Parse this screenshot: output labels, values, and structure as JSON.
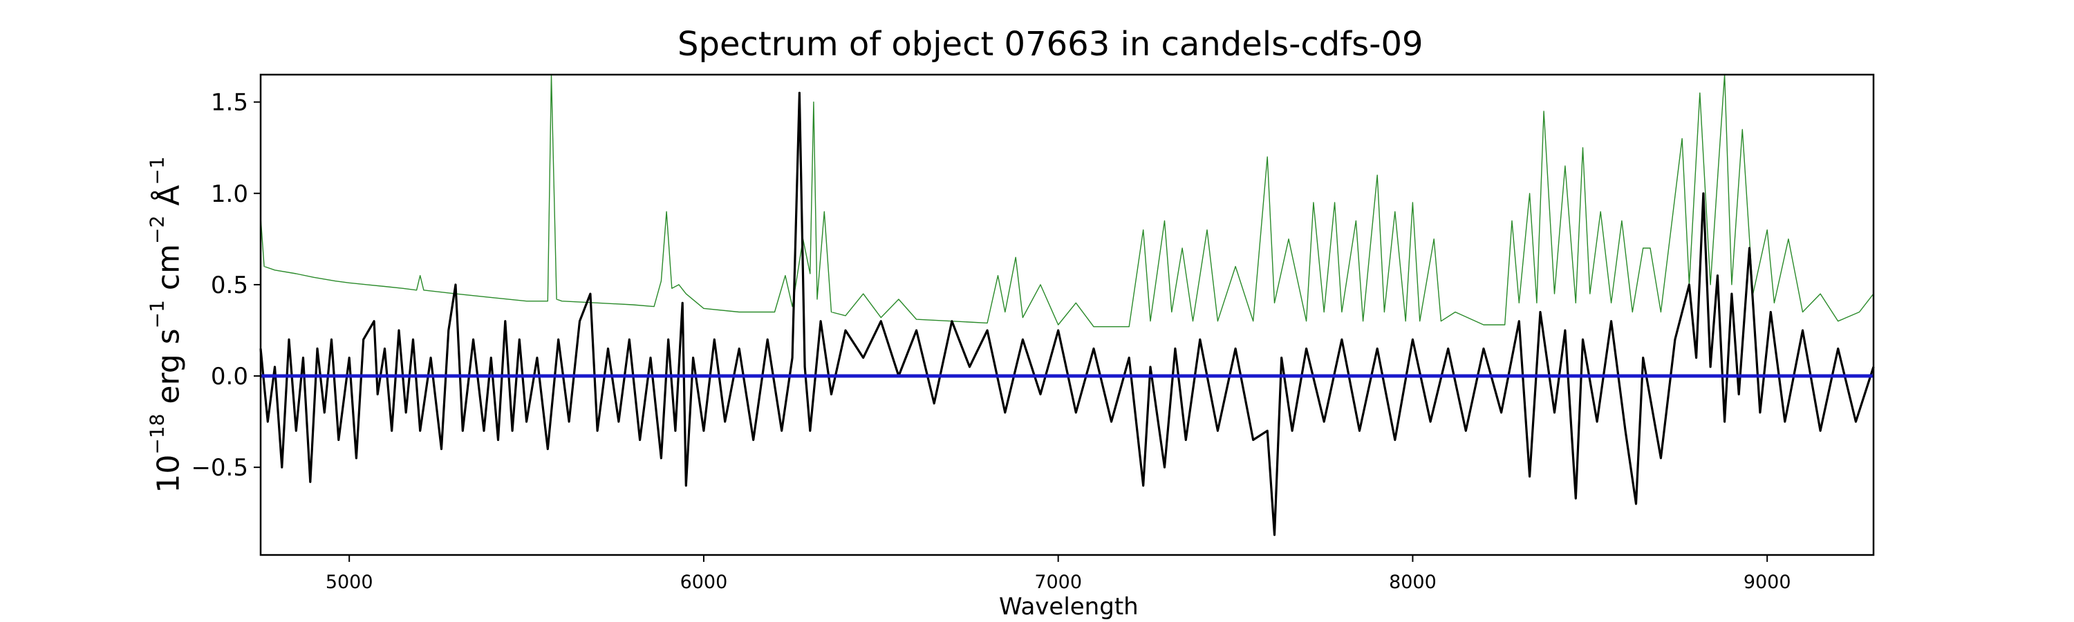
{
  "chart_data": {
    "type": "line",
    "title": "Spectrum of object 07663 in candels-cdfs-09",
    "xlabel": "Wavelength",
    "ylabel": {
      "prefix": "10",
      "prefix_exp": "−18",
      "unit1": " erg s",
      "unit1_exp": "−1",
      "unit2": " cm",
      "unit2_exp": "−2",
      "unit3": " Å",
      "unit3_exp": "−1"
    },
    "xlim": [
      4750,
      9300
    ],
    "ylim": [
      -0.98,
      1.65
    ],
    "xticks": [
      5000,
      6000,
      7000,
      8000,
      9000
    ],
    "xtick_labels": [
      "5000",
      "6000",
      "7000",
      "8000",
      "9000"
    ],
    "yticks": [
      -0.5,
      0.0,
      0.5,
      1.0,
      1.5
    ],
    "ytick_labels": [
      "−0.5",
      "0.0",
      "0.5",
      "1.0",
      "1.5"
    ],
    "grid": false,
    "series": [
      {
        "color": "#2a8a2a",
        "role": "error",
        "width": 1.4,
        "points": [
          [
            4750,
            0.87
          ],
          [
            4760,
            0.6
          ],
          [
            4790,
            0.58
          ],
          [
            4850,
            0.56
          ],
          [
            4900,
            0.54
          ],
          [
            4960,
            0.52
          ],
          [
            5000,
            0.51
          ],
          [
            5050,
            0.5
          ],
          [
            5100,
            0.49
          ],
          [
            5150,
            0.48
          ],
          [
            5190,
            0.47
          ],
          [
            5200,
            0.55
          ],
          [
            5210,
            0.47
          ],
          [
            5300,
            0.45
          ],
          [
            5400,
            0.43
          ],
          [
            5500,
            0.41
          ],
          [
            5560,
            0.41
          ],
          [
            5570,
            1.65
          ],
          [
            5585,
            0.42
          ],
          [
            5600,
            0.41
          ],
          [
            5700,
            0.4
          ],
          [
            5800,
            0.39
          ],
          [
            5860,
            0.38
          ],
          [
            5880,
            0.52
          ],
          [
            5895,
            0.9
          ],
          [
            5910,
            0.48
          ],
          [
            5930,
            0.5
          ],
          [
            5950,
            0.45
          ],
          [
            6000,
            0.37
          ],
          [
            6100,
            0.35
          ],
          [
            6200,
            0.35
          ],
          [
            6230,
            0.55
          ],
          [
            6250,
            0.38
          ],
          [
            6280,
            0.75
          ],
          [
            6300,
            0.56
          ],
          [
            6310,
            1.5
          ],
          [
            6320,
            0.42
          ],
          [
            6340,
            0.9
          ],
          [
            6360,
            0.35
          ],
          [
            6400,
            0.33
          ],
          [
            6450,
            0.45
          ],
          [
            6500,
            0.32
          ],
          [
            6550,
            0.42
          ],
          [
            6600,
            0.31
          ],
          [
            6700,
            0.3
          ],
          [
            6800,
            0.29
          ],
          [
            6830,
            0.55
          ],
          [
            6850,
            0.35
          ],
          [
            6880,
            0.65
          ],
          [
            6900,
            0.32
          ],
          [
            6950,
            0.5
          ],
          [
            7000,
            0.28
          ],
          [
            7050,
            0.4
          ],
          [
            7100,
            0.27
          ],
          [
            7200,
            0.27
          ],
          [
            7240,
            0.8
          ],
          [
            7260,
            0.3
          ],
          [
            7300,
            0.85
          ],
          [
            7320,
            0.35
          ],
          [
            7350,
            0.7
          ],
          [
            7380,
            0.3
          ],
          [
            7420,
            0.8
          ],
          [
            7450,
            0.3
          ],
          [
            7500,
            0.6
          ],
          [
            7550,
            0.3
          ],
          [
            7590,
            1.2
          ],
          [
            7610,
            0.4
          ],
          [
            7650,
            0.75
          ],
          [
            7700,
            0.3
          ],
          [
            7720,
            0.95
          ],
          [
            7750,
            0.35
          ],
          [
            7780,
            0.95
          ],
          [
            7800,
            0.35
          ],
          [
            7840,
            0.85
          ],
          [
            7860,
            0.3
          ],
          [
            7900,
            1.1
          ],
          [
            7920,
            0.35
          ],
          [
            7950,
            0.9
          ],
          [
            7980,
            0.3
          ],
          [
            8000,
            0.95
          ],
          [
            8020,
            0.3
          ],
          [
            8060,
            0.75
          ],
          [
            8080,
            0.3
          ],
          [
            8120,
            0.35
          ],
          [
            8200,
            0.28
          ],
          [
            8260,
            0.28
          ],
          [
            8280,
            0.85
          ],
          [
            8300,
            0.4
          ],
          [
            8330,
            1.0
          ],
          [
            8350,
            0.4
          ],
          [
            8370,
            1.45
          ],
          [
            8400,
            0.45
          ],
          [
            8430,
            1.15
          ],
          [
            8460,
            0.4
          ],
          [
            8480,
            1.25
          ],
          [
            8500,
            0.45
          ],
          [
            8530,
            0.9
          ],
          [
            8560,
            0.4
          ],
          [
            8590,
            0.85
          ],
          [
            8620,
            0.35
          ],
          [
            8650,
            0.7
          ],
          [
            8670,
            0.7
          ],
          [
            8700,
            0.35
          ],
          [
            8760,
            1.3
          ],
          [
            8780,
            0.5
          ],
          [
            8810,
            1.55
          ],
          [
            8840,
            0.5
          ],
          [
            8880,
            1.65
          ],
          [
            8900,
            0.5
          ],
          [
            8930,
            1.35
          ],
          [
            8960,
            0.45
          ],
          [
            9000,
            0.8
          ],
          [
            9020,
            0.4
          ],
          [
            9060,
            0.75
          ],
          [
            9100,
            0.35
          ],
          [
            9150,
            0.45
          ],
          [
            9200,
            0.3
          ],
          [
            9260,
            0.35
          ],
          [
            9300,
            0.45
          ]
        ]
      },
      {
        "color": "#000000",
        "role": "flux",
        "width": 3.2,
        "points": [
          [
            4750,
            0.15
          ],
          [
            4770,
            -0.25
          ],
          [
            4790,
            0.05
          ],
          [
            4810,
            -0.5
          ],
          [
            4830,
            0.2
          ],
          [
            4850,
            -0.3
          ],
          [
            4870,
            0.1
          ],
          [
            4890,
            -0.58
          ],
          [
            4910,
            0.15
          ],
          [
            4930,
            -0.2
          ],
          [
            4950,
            0.2
          ],
          [
            4970,
            -0.35
          ],
          [
            5000,
            0.1
          ],
          [
            5020,
            -0.45
          ],
          [
            5040,
            0.2
          ],
          [
            5070,
            0.3
          ],
          [
            5080,
            -0.1
          ],
          [
            5100,
            0.15
          ],
          [
            5120,
            -0.3
          ],
          [
            5140,
            0.25
          ],
          [
            5160,
            -0.2
          ],
          [
            5180,
            0.2
          ],
          [
            5200,
            -0.3
          ],
          [
            5230,
            0.1
          ],
          [
            5260,
            -0.4
          ],
          [
            5280,
            0.25
          ],
          [
            5300,
            0.5
          ],
          [
            5320,
            -0.3
          ],
          [
            5350,
            0.2
          ],
          [
            5380,
            -0.3
          ],
          [
            5400,
            0.1
          ],
          [
            5420,
            -0.35
          ],
          [
            5440,
            0.3
          ],
          [
            5460,
            -0.3
          ],
          [
            5480,
            0.2
          ],
          [
            5500,
            -0.25
          ],
          [
            5530,
            0.1
          ],
          [
            5560,
            -0.4
          ],
          [
            5590,
            0.2
          ],
          [
            5620,
            -0.25
          ],
          [
            5650,
            0.3
          ],
          [
            5680,
            0.45
          ],
          [
            5700,
            -0.3
          ],
          [
            5730,
            0.15
          ],
          [
            5760,
            -0.25
          ],
          [
            5790,
            0.2
          ],
          [
            5820,
            -0.35
          ],
          [
            5850,
            0.1
          ],
          [
            5880,
            -0.45
          ],
          [
            5900,
            0.2
          ],
          [
            5920,
            -0.3
          ],
          [
            5940,
            0.4
          ],
          [
            5950,
            -0.6
          ],
          [
            5970,
            0.1
          ],
          [
            6000,
            -0.3
          ],
          [
            6030,
            0.2
          ],
          [
            6060,
            -0.25
          ],
          [
            6100,
            0.15
          ],
          [
            6140,
            -0.35
          ],
          [
            6180,
            0.2
          ],
          [
            6220,
            -0.3
          ],
          [
            6250,
            0.1
          ],
          [
            6270,
            1.55
          ],
          [
            6285,
            0.05
          ],
          [
            6300,
            -0.3
          ],
          [
            6330,
            0.3
          ],
          [
            6360,
            -0.1
          ],
          [
            6400,
            0.25
          ],
          [
            6450,
            0.1
          ],
          [
            6500,
            0.3
          ],
          [
            6550,
            0.0
          ],
          [
            6600,
            0.25
          ],
          [
            6650,
            -0.15
          ],
          [
            6700,
            0.3
          ],
          [
            6750,
            0.05
          ],
          [
            6800,
            0.25
          ],
          [
            6850,
            -0.2
          ],
          [
            6900,
            0.2
          ],
          [
            6950,
            -0.1
          ],
          [
            7000,
            0.25
          ],
          [
            7050,
            -0.2
          ],
          [
            7100,
            0.15
          ],
          [
            7150,
            -0.25
          ],
          [
            7200,
            0.1
          ],
          [
            7240,
            -0.6
          ],
          [
            7260,
            0.05
          ],
          [
            7300,
            -0.5
          ],
          [
            7330,
            0.15
          ],
          [
            7360,
            -0.35
          ],
          [
            7400,
            0.2
          ],
          [
            7450,
            -0.3
          ],
          [
            7500,
            0.15
          ],
          [
            7550,
            -0.35
          ],
          [
            7590,
            -0.3
          ],
          [
            7610,
            -0.87
          ],
          [
            7630,
            0.1
          ],
          [
            7660,
            -0.3
          ],
          [
            7700,
            0.15
          ],
          [
            7750,
            -0.25
          ],
          [
            7800,
            0.2
          ],
          [
            7850,
            -0.3
          ],
          [
            7900,
            0.15
          ],
          [
            7950,
            -0.35
          ],
          [
            8000,
            0.2
          ],
          [
            8050,
            -0.25
          ],
          [
            8100,
            0.15
          ],
          [
            8150,
            -0.3
          ],
          [
            8200,
            0.15
          ],
          [
            8250,
            -0.2
          ],
          [
            8300,
            0.3
          ],
          [
            8330,
            -0.55
          ],
          [
            8360,
            0.35
          ],
          [
            8400,
            -0.2
          ],
          [
            8430,
            0.25
          ],
          [
            8460,
            -0.67
          ],
          [
            8480,
            0.2
          ],
          [
            8520,
            -0.25
          ],
          [
            8560,
            0.3
          ],
          [
            8600,
            -0.3
          ],
          [
            8630,
            -0.7
          ],
          [
            8650,
            0.1
          ],
          [
            8700,
            -0.45
          ],
          [
            8740,
            0.2
          ],
          [
            8780,
            0.5
          ],
          [
            8800,
            0.1
          ],
          [
            8820,
            1.0
          ],
          [
            8840,
            0.05
          ],
          [
            8860,
            0.55
          ],
          [
            8880,
            -0.25
          ],
          [
            8900,
            0.45
          ],
          [
            8920,
            -0.1
          ],
          [
            8950,
            0.7
          ],
          [
            8980,
            -0.2
          ],
          [
            9010,
            0.35
          ],
          [
            9050,
            -0.25
          ],
          [
            9100,
            0.25
          ],
          [
            9150,
            -0.3
          ],
          [
            9200,
            0.15
          ],
          [
            9250,
            -0.25
          ],
          [
            9300,
            0.05
          ]
        ]
      },
      {
        "color": "#1a1acc",
        "role": "model",
        "width": 5,
        "points": [
          [
            4750,
            0.0
          ],
          [
            9300,
            0.0
          ]
        ]
      }
    ]
  }
}
